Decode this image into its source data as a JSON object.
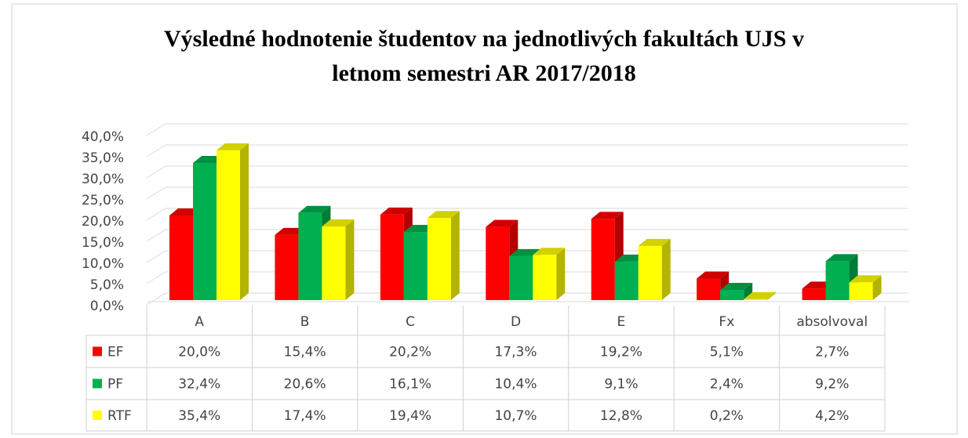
{
  "chart_data": {
    "type": "bar3d",
    "title": [
      "Výsledné hodnotenie študentov  na jednotlivých fakultách UJS v",
      "letnom semestri AR 2017/2018"
    ],
    "categories": [
      "A",
      "B",
      "C",
      "D",
      "E",
      "Fx",
      "absolvoval"
    ],
    "series": [
      {
        "name": "EF",
        "color": "#ff0000",
        "values": [
          20.0,
          15.4,
          20.2,
          17.3,
          19.2,
          5.1,
          2.7
        ],
        "value_labels": [
          "20,0%",
          "15,4%",
          "20,2%",
          "17,3%",
          "19,2%",
          "5,1%",
          "2,7%"
        ]
      },
      {
        "name": "PF",
        "color": "#00b050",
        "values": [
          32.4,
          20.6,
          16.1,
          10.4,
          9.1,
          2.4,
          9.2
        ],
        "value_labels": [
          "32,4%",
          "20,6%",
          "16,1%",
          "10,4%",
          "9,1%",
          "2,4%",
          "9,2%"
        ]
      },
      {
        "name": "RTF",
        "color": "#ffff00",
        "values": [
          35.4,
          17.4,
          19.4,
          10.7,
          12.8,
          0.2,
          4.2
        ],
        "value_labels": [
          "35,4%",
          "17,4%",
          "19,4%",
          "10,7%",
          "12,8%",
          "0,2%",
          "4,2%"
        ]
      }
    ],
    "ylim": [
      0,
      40
    ],
    "yticks": [
      {
        "value": 0,
        "label": "0,0%"
      },
      {
        "value": 5,
        "label": "5,0%"
      },
      {
        "value": 10,
        "label": "10,0%"
      },
      {
        "value": 15,
        "label": "15,0%"
      },
      {
        "value": 20,
        "label": "20,0%"
      },
      {
        "value": 25,
        "label": "25,0%"
      },
      {
        "value": 30,
        "label": "30,0%"
      },
      {
        "value": 35,
        "label": "35,0%"
      },
      {
        "value": 40,
        "label": "40,0%"
      }
    ],
    "grid": true
  }
}
